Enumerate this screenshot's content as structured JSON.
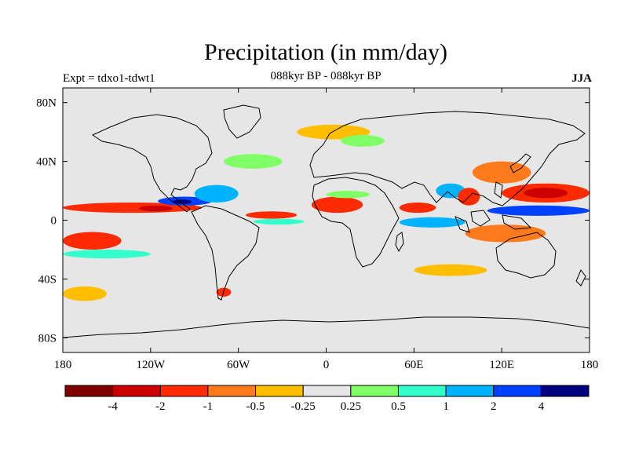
{
  "title": "Precipitation (in mm/day)",
  "subtitle_left": "Expt = tdxo1-tdwt1",
  "subtitle_center": "088kyr BP - 088kyr BP",
  "subtitle_right": "JJA",
  "map": {
    "projection": "cylindrical equidistant",
    "lon_range": [
      -180,
      180
    ],
    "lat_range": [
      -90,
      90
    ],
    "x_ticks": [
      {
        "lon": -180,
        "label": "180"
      },
      {
        "lon": -120,
        "label": "120W"
      },
      {
        "lon": -60,
        "label": "60W"
      },
      {
        "lon": 0,
        "label": "0"
      },
      {
        "lon": 60,
        "label": "60E"
      },
      {
        "lon": 120,
        "label": "120E"
      },
      {
        "lon": 180,
        "label": "180"
      }
    ],
    "y_ticks": [
      {
        "lat": 80,
        "label": "80N"
      },
      {
        "lat": 40,
        "label": "40N"
      },
      {
        "lat": 0,
        "label": "0"
      },
      {
        "lat": -40,
        "label": "40S"
      },
      {
        "lat": -80,
        "label": "80S"
      }
    ],
    "background_color": "#e6e6e6"
  },
  "colorbar": {
    "colors": [
      "#800000",
      "#cc0000",
      "#ff2a00",
      "#ff7a1a",
      "#ffbf00",
      "#e6e6e6",
      "#80ff66",
      "#33ffcc",
      "#00b3ff",
      "#0040ff",
      "#000080"
    ],
    "labels": [
      "-4",
      "-2",
      "-1",
      "-0.5",
      "-0.25",
      "0.25",
      "0.5",
      "1",
      "2",
      "4"
    ]
  },
  "anomaly_regions": [
    {
      "name": "central-pacific-itcz-deficit",
      "color": "#ff2a00",
      "lon": [
        -180,
        -85
      ],
      "lat": [
        5,
        12
      ]
    },
    {
      "name": "east-pacific-strong-deficit",
      "color": "#cc0000",
      "lon": [
        -128,
        -105
      ],
      "lat": [
        6,
        10
      ]
    },
    {
      "name": "east-pacific-itcz-surplus",
      "color": "#0040ff",
      "lon": [
        -115,
        -78
      ],
      "lat": [
        10,
        16
      ]
    },
    {
      "name": "east-pacific-dark-surplus",
      "color": "#000080",
      "lon": [
        -105,
        -92
      ],
      "lat": [
        11,
        14
      ]
    },
    {
      "name": "caribbean-surplus",
      "color": "#00b3ff",
      "lon": [
        -90,
        -60
      ],
      "lat": [
        12,
        24
      ]
    },
    {
      "name": "atlantic-itcz-deficit",
      "color": "#ff2a00",
      "lon": [
        -55,
        -20
      ],
      "lat": [
        1,
        6
      ]
    },
    {
      "name": "atlantic-itcz-surplus",
      "color": "#33ffcc",
      "lon": [
        -50,
        -15
      ],
      "lat": [
        -3,
        1
      ]
    },
    {
      "name": "west-africa-deficit",
      "color": "#ff2a00",
      "lon": [
        -10,
        25
      ],
      "lat": [
        5,
        16
      ]
    },
    {
      "name": "sahel-surplus",
      "color": "#80ff66",
      "lon": [
        0,
        30
      ],
      "lat": [
        15,
        20
      ]
    },
    {
      "name": "arabian-sea-deficit",
      "color": "#ff2a00",
      "lon": [
        50,
        75
      ],
      "lat": [
        5,
        12
      ]
    },
    {
      "name": "indian-surplus",
      "color": "#00b3ff",
      "lon": [
        75,
        95
      ],
      "lat": [
        15,
        25
      ]
    },
    {
      "name": "equatorial-indian-surplus",
      "color": "#00b3ff",
      "lon": [
        50,
        95
      ],
      "lat": [
        -5,
        2
      ]
    },
    {
      "name": "bay-of-bengal-deficit",
      "color": "#ff2a00",
      "lon": [
        90,
        105
      ],
      "lat": [
        10,
        22
      ]
    },
    {
      "name": "east-asia-deficit",
      "color": "#ff7a1a",
      "lon": [
        100,
        140
      ],
      "lat": [
        25,
        40
      ]
    },
    {
      "name": "west-pacific-deficit",
      "color": "#ff2a00",
      "lon": [
        120,
        180
      ],
      "lat": [
        12,
        25
      ]
    },
    {
      "name": "west-pacific-strong-deficit",
      "color": "#cc0000",
      "lon": [
        135,
        165
      ],
      "lat": [
        15,
        22
      ]
    },
    {
      "name": "west-pacific-surplus",
      "color": "#0040ff",
      "lon": [
        110,
        180
      ],
      "lat": [
        3,
        10
      ]
    },
    {
      "name": "maritime-continent-deficit",
      "color": "#ff7a1a",
      "lon": [
        95,
        150
      ],
      "lat": [
        -15,
        -3
      ]
    },
    {
      "name": "south-pacific-deficit",
      "color": "#ff2a00",
      "lon": [
        -180,
        -140
      ],
      "lat": [
        -20,
        -8
      ]
    },
    {
      "name": "south-pacific-surplus",
      "color": "#33ffcc",
      "lon": [
        -180,
        -120
      ],
      "lat": [
        -26,
        -20
      ]
    },
    {
      "name": "north-atlantic-surplus",
      "color": "#80ff66",
      "lon": [
        -70,
        -30
      ],
      "lat": [
        35,
        45
      ]
    },
    {
      "name": "south-indian-deficit",
      "color": "#ffbf00",
      "lon": [
        60,
        110
      ],
      "lat": [
        -38,
        -30
      ]
    },
    {
      "name": "southern-ocean-deficit",
      "color": "#ffbf00",
      "lon": [
        -180,
        -150
      ],
      "lat": [
        -55,
        -45
      ]
    },
    {
      "name": "south-america-tip-deficit",
      "color": "#ff2a00",
      "lon": [
        -75,
        -65
      ],
      "lat": [
        -52,
        -46
      ]
    },
    {
      "name": "arctic-deficit",
      "color": "#ffbf00",
      "lon": [
        -20,
        30
      ],
      "lat": [
        55,
        65
      ]
    },
    {
      "name": "siberia-surplus",
      "color": "#80ff66",
      "lon": [
        10,
        40
      ],
      "lat": [
        50,
        58
      ]
    }
  ]
}
